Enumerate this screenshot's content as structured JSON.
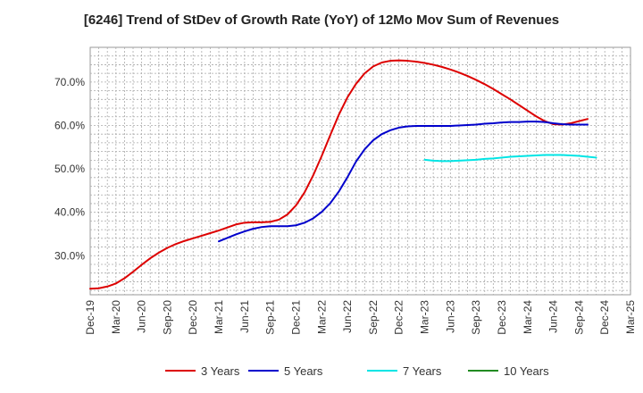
{
  "chart_data": {
    "type": "line",
    "title": "[6246]  Trend of StDev of Growth Rate (YoY) of 12Mo Mov Sum of Revenues",
    "xlabel": "",
    "ylabel": "",
    "ylim": [
      21,
      78
    ],
    "y_ticks": [
      30,
      40,
      50,
      60,
      70
    ],
    "y_tick_labels": [
      "30.0%",
      "40.0%",
      "50.0%",
      "60.0%",
      "70.0%"
    ],
    "x_tick_labels": [
      "Dec-19",
      "Mar-20",
      "Jun-20",
      "Sep-20",
      "Dec-20",
      "Mar-21",
      "Jun-21",
      "Sep-21",
      "Dec-21",
      "Mar-22",
      "Jun-22",
      "Sep-22",
      "Dec-22",
      "Mar-23",
      "Jun-23",
      "Sep-23",
      "Dec-23",
      "Mar-24",
      "Jun-24",
      "Sep-24",
      "Dec-24",
      "Mar-25"
    ],
    "grid": true,
    "legend_position": "bottom",
    "series": [
      {
        "name": "3 Years",
        "color": "#dd0000",
        "start_index": 0,
        "values": [
          22.4,
          22.5,
          22.9,
          23.6,
          24.8,
          26.3,
          27.9,
          29.4,
          30.7,
          31.8,
          32.7,
          33.4,
          34.0,
          34.6,
          35.2,
          35.8,
          36.5,
          37.2,
          37.6,
          37.7,
          37.7,
          37.8,
          38.3,
          39.5,
          41.6,
          44.6,
          48.5,
          53.0,
          57.8,
          62.5,
          66.5,
          69.6,
          72.0,
          73.6,
          74.5,
          74.9,
          75.0,
          74.9,
          74.7,
          74.4,
          74.0,
          73.5,
          72.9,
          72.2,
          71.4,
          70.5,
          69.5,
          68.4,
          67.2,
          66.0,
          64.7,
          63.4,
          62.1,
          61.0,
          60.3,
          60.2,
          60.5,
          61.0,
          61.5
        ]
      },
      {
        "name": "5 Years",
        "color": "#0000cc",
        "start_index": 15,
        "values": [
          33.3,
          34.1,
          34.9,
          35.6,
          36.2,
          36.6,
          36.8,
          36.8,
          36.8,
          37.0,
          37.6,
          38.6,
          40.1,
          42.1,
          44.8,
          48.1,
          51.7,
          54.5,
          56.6,
          58.0,
          58.9,
          59.5,
          59.8,
          59.9,
          59.9,
          59.9,
          59.9,
          59.9,
          60.0,
          60.1,
          60.2,
          60.4,
          60.5,
          60.7,
          60.8,
          60.8,
          60.9,
          60.9,
          60.8,
          60.5,
          60.3,
          60.2,
          60.2,
          60.2
        ]
      },
      {
        "name": "7 Years",
        "color": "#00e5e5",
        "start_index": 39,
        "values": [
          52.1,
          51.9,
          51.8,
          51.8,
          51.9,
          52.0,
          52.1,
          52.3,
          52.4,
          52.6,
          52.8,
          52.9,
          53.0,
          53.1,
          53.2,
          53.2,
          53.2,
          53.1,
          53.0,
          52.8,
          52.6
        ]
      },
      {
        "name": "10 Years",
        "color": "#228b22",
        "start_index": 0,
        "values": []
      }
    ]
  }
}
